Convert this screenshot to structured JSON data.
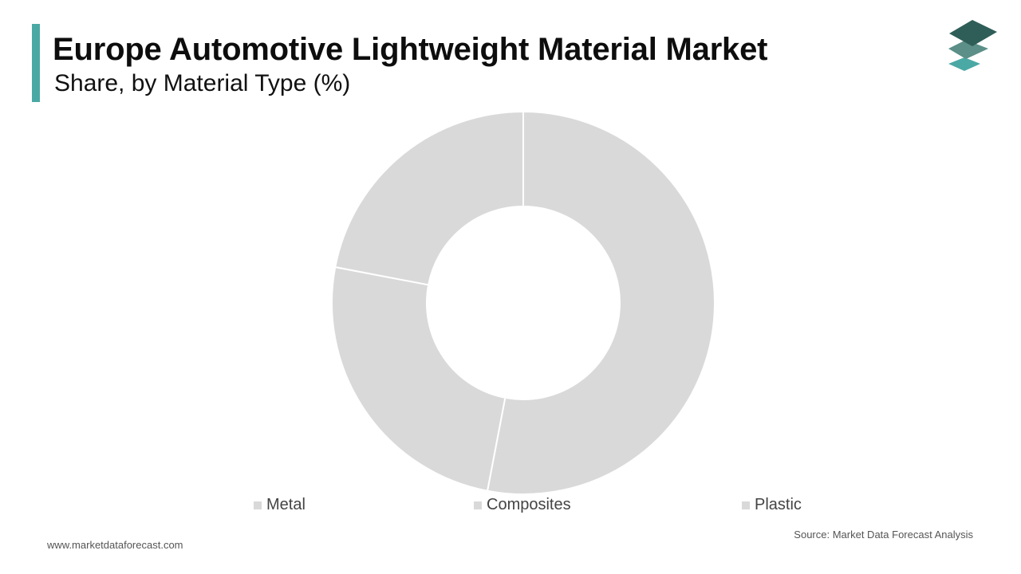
{
  "header": {
    "title": "Europe Automotive Lightweight Material Market",
    "subtitle": "Share, by Material Type (%)"
  },
  "colors": {
    "accent": "#4aa9a4",
    "slice_fill": "#d9d9d9",
    "slice_stroke": "#ffffff",
    "logo_dark": "#2f5e58",
    "logo_mid": "#5b8f88",
    "logo_light": "#4aa9a4"
  },
  "logo": {
    "icon": "stacked-layers-icon"
  },
  "chart_data": {
    "type": "pie",
    "variant": "donut",
    "categories": [
      "Metal",
      "Composites",
      "Plastic"
    ],
    "values": [
      53,
      25,
      22
    ],
    "unit": "%",
    "legend_position": "bottom"
  },
  "footer": {
    "url": "www.marketdataforecast.com",
    "source": "Source: Market Data Forecast Analysis"
  }
}
